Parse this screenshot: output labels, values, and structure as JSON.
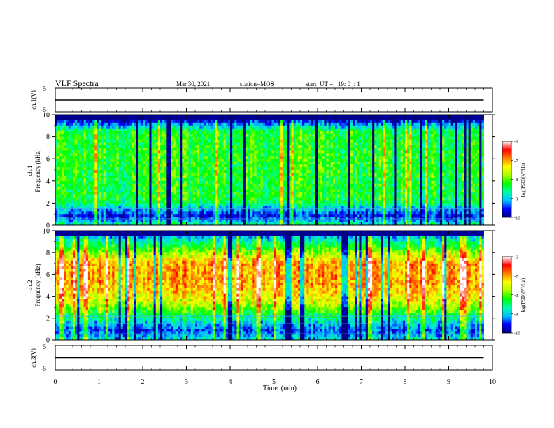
{
  "header": {
    "title": "VLF Spectra",
    "date": "Mar.30, 2021",
    "station": "station=MOS",
    "start": "start  UT =   19: 0  : 1"
  },
  "chart_data": [
    {
      "type": "line",
      "name": "ch1-waveform",
      "ylabel": "ch.1(V)",
      "ylim": [
        -5,
        5
      ],
      "yticks": [
        "5",
        "-5"
      ],
      "xlim": [
        0,
        10
      ],
      "series": [
        {
          "x": [
            0,
            9.8
          ],
          "y": [
            0,
            0
          ]
        }
      ]
    },
    {
      "type": "heatmap",
      "name": "ch1-spectrogram",
      "ylabel_top": "ch.1",
      "ylabel": "Frequency (kHz)",
      "ylim": [
        0,
        10
      ],
      "yticks": [
        0,
        2,
        4,
        6,
        8,
        10
      ],
      "xlim": [
        0,
        10
      ],
      "data_xmax": 9.8,
      "intensity_profile": [
        {
          "f": 0.0,
          "v": -8.6
        },
        {
          "f": 0.8,
          "v": -9.6
        },
        {
          "f": 1.5,
          "v": -9.0
        },
        {
          "f": 2.2,
          "v": -8.3
        },
        {
          "f": 3.5,
          "v": -8.3
        },
        {
          "f": 6.0,
          "v": -8.2
        },
        {
          "f": 8.5,
          "v": -8.3
        },
        {
          "f": 9.0,
          "v": -9.0
        },
        {
          "f": 9.5,
          "v": -9.8
        },
        {
          "f": 10.0,
          "v": -10.0
        }
      ]
    },
    {
      "type": "heatmap",
      "name": "ch2-spectrogram",
      "ylabel_top": "ch.2",
      "ylabel": "Frequency (kHz)",
      "ylim": [
        0,
        10
      ],
      "yticks": [
        0,
        2,
        4,
        6,
        8,
        10
      ],
      "xlim": [
        0,
        10
      ],
      "data_xmax": 9.8,
      "intensity_profile": [
        {
          "f": 0.0,
          "v": -8.8
        },
        {
          "f": 0.8,
          "v": -9.4
        },
        {
          "f": 1.5,
          "v": -9.0
        },
        {
          "f": 2.5,
          "v": -8.2
        },
        {
          "f": 3.5,
          "v": -7.5
        },
        {
          "f": 5.0,
          "v": -7.0
        },
        {
          "f": 7.0,
          "v": -7.0
        },
        {
          "f": 8.0,
          "v": -7.8
        },
        {
          "f": 9.0,
          "v": -8.6
        },
        {
          "f": 10.0,
          "v": -9.7
        }
      ]
    },
    {
      "type": "line",
      "name": "ch3-waveform",
      "ylabel": "ch.3(V)",
      "ylim": [
        -5,
        5
      ],
      "yticks": [
        "5",
        "-5"
      ],
      "xlim": [
        0,
        10
      ],
      "xlabel": "Time  (min)",
      "xticks": [
        0,
        1,
        2,
        3,
        4,
        5,
        6,
        7,
        8,
        9,
        10
      ],
      "series": [
        {
          "x": [
            0,
            9.8
          ],
          "y": [
            0,
            0
          ]
        }
      ]
    }
  ],
  "colorbar": {
    "label": "log(PSD)(V²/Hz)",
    "range": [
      -10,
      -6
    ],
    "ticks": [
      "-6",
      "-7",
      "-8",
      "-9",
      "-10"
    ],
    "colors": [
      "#000080",
      "#0000ff",
      "#00c0ff",
      "#00ffaa",
      "#00ff00",
      "#aaff00",
      "#ffff00",
      "#ff8000",
      "#ff0000",
      "#ffffff"
    ]
  }
}
